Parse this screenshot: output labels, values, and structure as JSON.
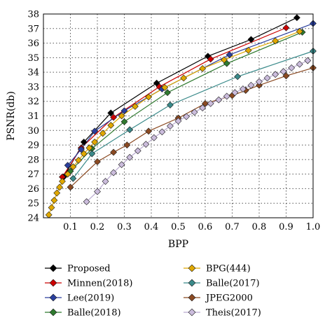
{
  "chart_data": {
    "type": "line",
    "xlabel": "BPP",
    "ylabel": "PSNR(db)",
    "xlim": [
      0.0,
      1.0
    ],
    "ylim": [
      24,
      38
    ],
    "xticks": [
      "0.1",
      "0.2",
      "0.3",
      "0.4",
      "0.5",
      "0.6",
      "0.7",
      "0.8",
      "0.9",
      "1.0"
    ],
    "yticks": [
      "24",
      "25",
      "26",
      "27",
      "28",
      "29",
      "30",
      "31",
      "32",
      "33",
      "34",
      "35",
      "36",
      "37",
      "38"
    ],
    "grid": "dotted",
    "legend_position": "bottom",
    "series": [
      {
        "name": "Proposed",
        "color": "#000000",
        "marker": "diamond",
        "x": [
          0.075,
          0.15,
          0.25,
          0.42,
          0.61,
          0.77,
          0.94
        ],
        "y": [
          26.8,
          29.2,
          31.2,
          33.25,
          35.1,
          36.25,
          37.75
        ]
      },
      {
        "name": "Minnen(2018)",
        "color": "#cc0000",
        "marker": "diamond",
        "x": [
          0.07,
          0.14,
          0.26,
          0.43,
          0.62,
          0.9
        ],
        "y": [
          26.8,
          28.8,
          30.9,
          33.0,
          34.9,
          37.05
        ]
      },
      {
        "name": "Lee(2019)",
        "color": "#2a3f9e",
        "marker": "diamond",
        "x": [
          0.09,
          0.14,
          0.19,
          0.3,
          0.44,
          0.69,
          1.0
        ],
        "y": [
          27.6,
          28.7,
          29.95,
          31.35,
          32.85,
          35.2,
          37.35
        ]
      },
      {
        "name": "Balle(2018)",
        "color": "#2f7a2f",
        "marker": "diamond",
        "x": [
          0.1,
          0.18,
          0.3,
          0.46,
          0.68,
          0.96
        ],
        "y": [
          27.2,
          28.75,
          30.6,
          32.6,
          34.6,
          36.75
        ]
      },
      {
        "name": "BPG(444)",
        "color": "#e0a800",
        "marker": "diamond",
        "x": [
          0.02,
          0.03,
          0.04,
          0.05,
          0.06,
          0.07,
          0.09,
          0.11,
          0.13,
          0.15,
          0.17,
          0.19,
          0.22,
          0.25,
          0.29,
          0.34,
          0.39,
          0.45,
          0.52,
          0.59,
          0.67,
          0.76,
          0.86,
          0.95
        ],
        "y": [
          24.2,
          24.7,
          25.2,
          25.7,
          26.1,
          26.5,
          27.0,
          27.5,
          27.95,
          28.4,
          28.8,
          29.2,
          29.8,
          30.35,
          31.0,
          31.65,
          32.3,
          32.95,
          33.6,
          34.25,
          34.85,
          35.5,
          36.15,
          36.8
        ]
      },
      {
        "name": "Balle(2017)",
        "color": "#3a8a8a",
        "marker": "diamond",
        "x": [
          0.11,
          0.18,
          0.32,
          0.47,
          0.72,
          1.0
        ],
        "y": [
          26.7,
          28.4,
          30.05,
          31.75,
          33.7,
          35.45
        ]
      },
      {
        "name": "JPEG2000",
        "color": "#8b4a22",
        "marker": "diamond",
        "x": [
          0.1,
          0.2,
          0.26,
          0.31,
          0.39,
          0.5,
          0.6,
          0.7,
          0.75,
          0.8,
          0.9,
          1.0
        ],
        "y": [
          26.1,
          27.85,
          28.5,
          29.0,
          29.95,
          30.85,
          31.85,
          32.4,
          32.75,
          33.1,
          33.75,
          34.3
        ]
      },
      {
        "name": "Theis(2017)",
        "color": "#cbbcdc",
        "marker": "diamond",
        "x": [
          0.16,
          0.2,
          0.23,
          0.26,
          0.29,
          0.32,
          0.35,
          0.38,
          0.41,
          0.44,
          0.47,
          0.5,
          0.53,
          0.56,
          0.59,
          0.62,
          0.65,
          0.68,
          0.71,
          0.74,
          0.77,
          0.8,
          0.83,
          0.86,
          0.89,
          0.92,
          0.95,
          0.98
        ],
        "y": [
          25.1,
          25.8,
          26.5,
          27.1,
          27.65,
          28.15,
          28.6,
          29.05,
          29.5,
          29.9,
          30.3,
          30.65,
          30.95,
          31.25,
          31.55,
          31.85,
          32.1,
          32.35,
          32.6,
          32.85,
          33.1,
          33.35,
          33.6,
          33.85,
          34.05,
          34.3,
          34.55,
          34.8
        ]
      }
    ]
  }
}
